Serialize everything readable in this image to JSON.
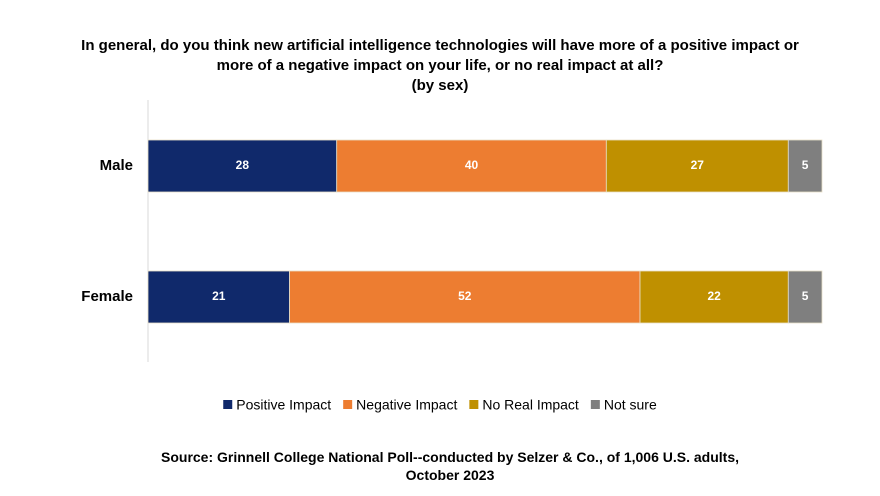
{
  "chart_data": {
    "type": "stacked-bar-horizontal",
    "title": "In general, do you think new artificial intelligence technologies will have more of a positive impact or more of a negative impact on your life, or no real impact at all?",
    "subtitle": "(by sex)",
    "categories": [
      "Male",
      "Female"
    ],
    "series": [
      {
        "name": "Positive Impact",
        "color": "#10296b",
        "values": [
          28,
          21
        ]
      },
      {
        "name": "Negative Impact",
        "color": "#ed7d31",
        "values": [
          40,
          52
        ]
      },
      {
        "name": "No Real Impact",
        "color": "#bf9000",
        "values": [
          27,
          22
        ]
      },
      {
        "name": "Not sure",
        "color": "#7f7f7f",
        "values": [
          5,
          5
        ]
      }
    ],
    "xlim": [
      0,
      100
    ],
    "legend": "bottom",
    "source": "Source: Grinnell College National Poll--conducted by Selzer & Co., of 1,006 U.S. adults, October 2023"
  }
}
